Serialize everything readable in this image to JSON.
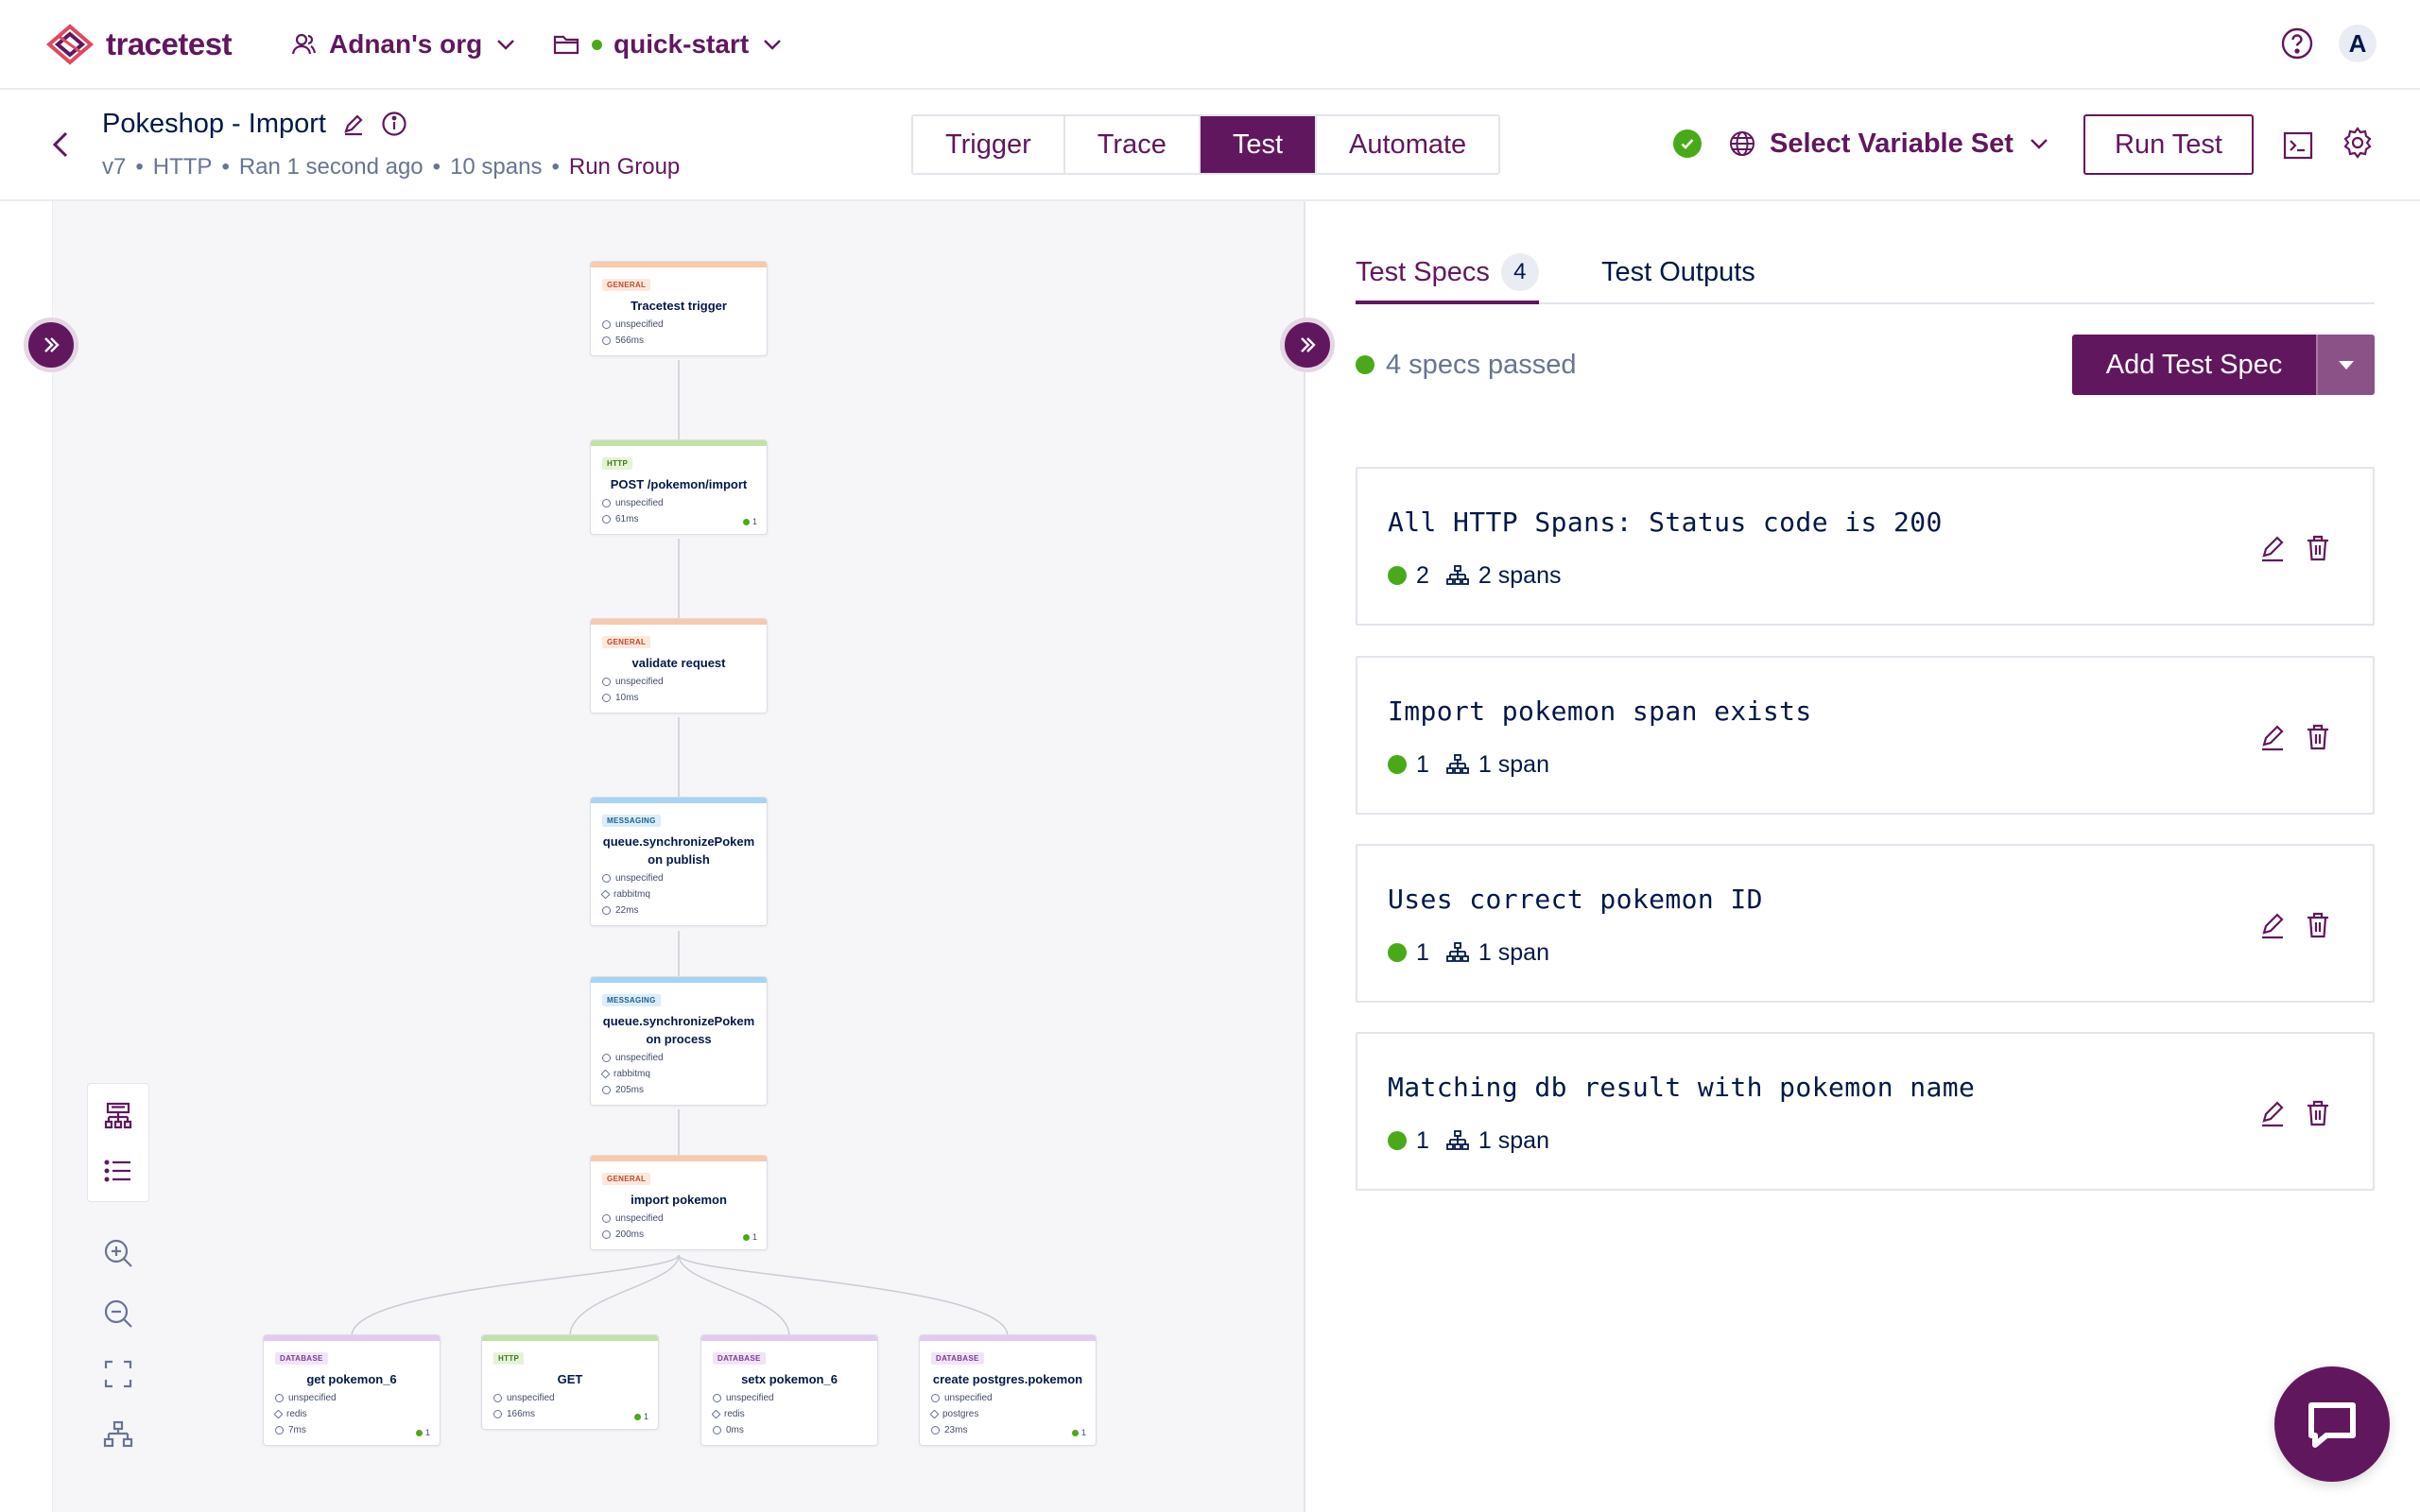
{
  "brand": {
    "name": "tracetest"
  },
  "topbar": {
    "org": "Adnan's org",
    "environment": "quick-start",
    "avatar_initial": "A"
  },
  "test": {
    "name": "Pokeshop - Import",
    "version": "v7",
    "trigger_type": "HTTP",
    "ran": "Ran 1 second ago",
    "spans": "10 spans",
    "run_group": "Run Group",
    "separator": "•"
  },
  "mode_tabs": [
    {
      "label": "Trigger",
      "active": false
    },
    {
      "label": "Trace",
      "active": false
    },
    {
      "label": "Test",
      "active": true
    },
    {
      "label": "Automate",
      "active": false
    }
  ],
  "variable_set": {
    "label": "Select Variable Set"
  },
  "run_button": {
    "label": "Run Test"
  },
  "graph": {
    "nodes": [
      {
        "type": "GENERAL",
        "name": "Tracetest trigger",
        "service": "unspecified",
        "system": "",
        "duration": "566ms",
        "checks": ""
      },
      {
        "type": "HTTP",
        "name": "POST /pokemon/import",
        "service": "unspecified",
        "system": "",
        "duration": "61ms",
        "checks": "1"
      },
      {
        "type": "GENERAL",
        "name": "validate request",
        "service": "unspecified",
        "system": "",
        "duration": "10ms",
        "checks": ""
      },
      {
        "type": "MESSAGING",
        "name": "queue.synchronizePokemon publish",
        "service": "unspecified",
        "system": "rabbitmq",
        "duration": "22ms",
        "checks": ""
      },
      {
        "type": "MESSAGING",
        "name": "queue.synchronizePokemon process",
        "service": "unspecified",
        "system": "rabbitmq",
        "duration": "205ms",
        "checks": ""
      },
      {
        "type": "GENERAL",
        "name": "import pokemon",
        "service": "unspecified",
        "system": "",
        "duration": "200ms",
        "checks": "1"
      },
      {
        "type": "DATABASE",
        "name": "get pokemon_6",
        "service": "unspecified",
        "system": "redis",
        "duration": "7ms",
        "checks": "1"
      },
      {
        "type": "HTTP",
        "name": "GET",
        "service": "unspecified",
        "system": "",
        "duration": "166ms",
        "checks": "1"
      },
      {
        "type": "DATABASE",
        "name": "setx pokemon_6",
        "service": "unspecified",
        "system": "redis",
        "duration": "0ms",
        "checks": ""
      },
      {
        "type": "DATABASE",
        "name": "create postgres.pokemon",
        "service": "unspecified",
        "system": "postgres",
        "duration": "23ms",
        "checks": "1"
      }
    ],
    "type_colors": {
      "GENERAL": {
        "bar": "#f8c9ab",
        "badge_bg": "#fde8dc",
        "badge_fg": "#c0492a"
      },
      "HTTP": {
        "bar": "#c4e1a8",
        "badge_bg": "#e5f3d9",
        "badge_fg": "#3e7a1a"
      },
      "MESSAGING": {
        "bar": "#a7d4f4",
        "badge_bg": "#dcedf9",
        "badge_fg": "#1b5f93"
      },
      "DATABASE": {
        "bar": "#e3cbee",
        "badge_bg": "#f1e4f6",
        "badge_fg": "#7b3b95"
      }
    }
  },
  "spec_tabs": [
    {
      "label": "Test Specs",
      "count": "4",
      "active": true
    },
    {
      "label": "Test Outputs",
      "active": false
    }
  ],
  "summary": {
    "passed_text": "4 specs passed"
  },
  "add_spec": {
    "label": "Add Test Spec"
  },
  "specs": [
    {
      "title": "All HTTP Spans: Status code is 200",
      "passed": "2",
      "spans": "2 spans"
    },
    {
      "title": "Import pokemon span exists",
      "passed": "1",
      "spans": "1 span"
    },
    {
      "title": "Uses correct pokemon ID",
      "passed": "1",
      "spans": "1 span"
    },
    {
      "title": "Matching db result with pokemon name",
      "passed": "1",
      "spans": "1 span"
    }
  ],
  "colors": {
    "primary": "#61175e",
    "success": "#49aa19",
    "text": "#031849",
    "muted": "#687492"
  }
}
